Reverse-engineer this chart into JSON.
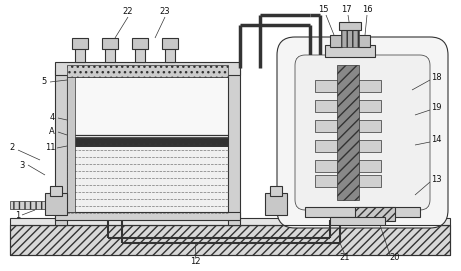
{
  "fig_width": 4.61,
  "fig_height": 2.71,
  "dpi": 100,
  "bg_color": "#ffffff",
  "lc": "#333333",
  "lc2": "#555555"
}
